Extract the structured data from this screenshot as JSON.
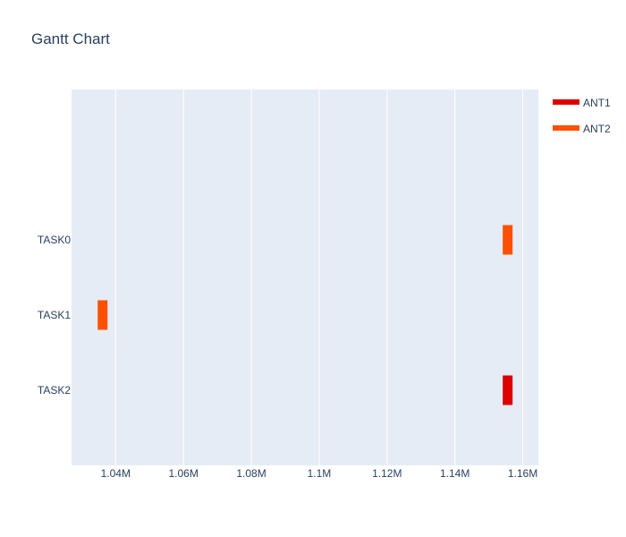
{
  "chart_data": {
    "type": "bar",
    "orientation": "horizontal",
    "title": "Gantt Chart",
    "xlabel": "",
    "ylabel": "",
    "categories": [
      "TASK0",
      "TASK1",
      "TASK2"
    ],
    "xlim": [
      1027000,
      1164600
    ],
    "x_ticks": [
      1040000,
      1060000,
      1080000,
      1100000,
      1120000,
      1140000,
      1160000
    ],
    "x_tick_labels": [
      "1.04M",
      "1.06M",
      "1.08M",
      "1.1M",
      "1.12M",
      "1.14M",
      "1.16M"
    ],
    "grid": true,
    "legend_position": "top-right",
    "series": [
      {
        "name": "ANT1",
        "color": "#dd0000",
        "bars": [
          {
            "task": "TASK2",
            "start": 1154100,
            "end": 1157000
          }
        ]
      },
      {
        "name": "ANT2",
        "color": "#ff5000",
        "bars": [
          {
            "task": "TASK0",
            "start": 1154100,
            "end": 1157000
          },
          {
            "task": "TASK1",
            "start": 1034700,
            "end": 1037600
          }
        ]
      }
    ],
    "plot_bg": "#e5ecf6"
  }
}
